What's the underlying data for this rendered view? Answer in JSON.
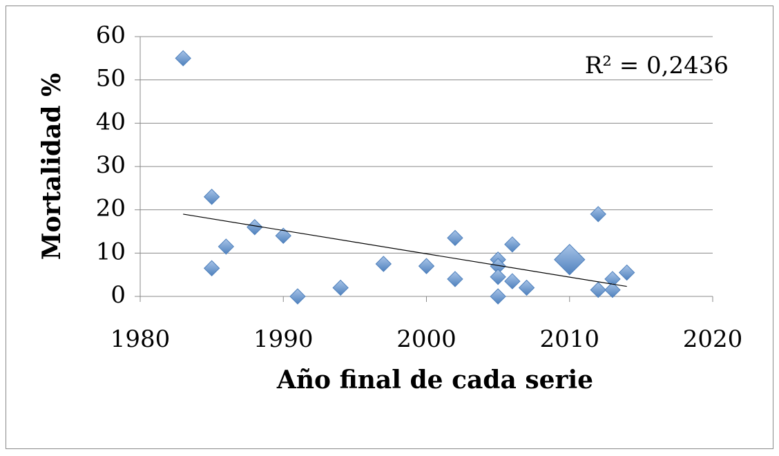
{
  "chart_data": {
    "type": "scatter",
    "x_label": "Año final de cada serie",
    "y_label": "Mortalidad %",
    "annotation": "R² = 0,2436",
    "color": "#4f81bd",
    "series": [
      {
        "x": [
          1983,
          1985,
          1985,
          1986,
          1988,
          1990,
          1991,
          1994,
          1997,
          2000,
          2002,
          2002,
          2005,
          2005,
          2005,
          2005,
          2006,
          2006,
          2007,
          2010,
          2012,
          2012,
          2013,
          2013,
          2014
        ],
        "values": [
          55,
          23,
          6.5,
          11.5,
          16,
          14,
          0,
          2,
          7.5,
          7,
          13.5,
          4,
          8.5,
          7,
          4.5,
          0,
          12,
          3.5,
          2,
          8.5,
          19,
          1.5,
          4,
          1.5,
          5.5
        ],
        "sizes": [
          1,
          1,
          1,
          1,
          1,
          1,
          1,
          1,
          1,
          1,
          1,
          1,
          1,
          1,
          1,
          1,
          1,
          1,
          1,
          2,
          1,
          1,
          1,
          1,
          1
        ]
      }
    ],
    "trendline": {
      "x": [
        1983,
        2014
      ],
      "values": [
        19,
        2.3
      ]
    },
    "xlim": [
      1980,
      2020
    ],
    "xticks": [
      1980,
      1990,
      2000,
      2010,
      2020
    ],
    "ylim": [
      0,
      60
    ],
    "yticks": [
      0,
      10,
      20,
      30,
      40,
      50,
      60
    ],
    "grid": true
  }
}
